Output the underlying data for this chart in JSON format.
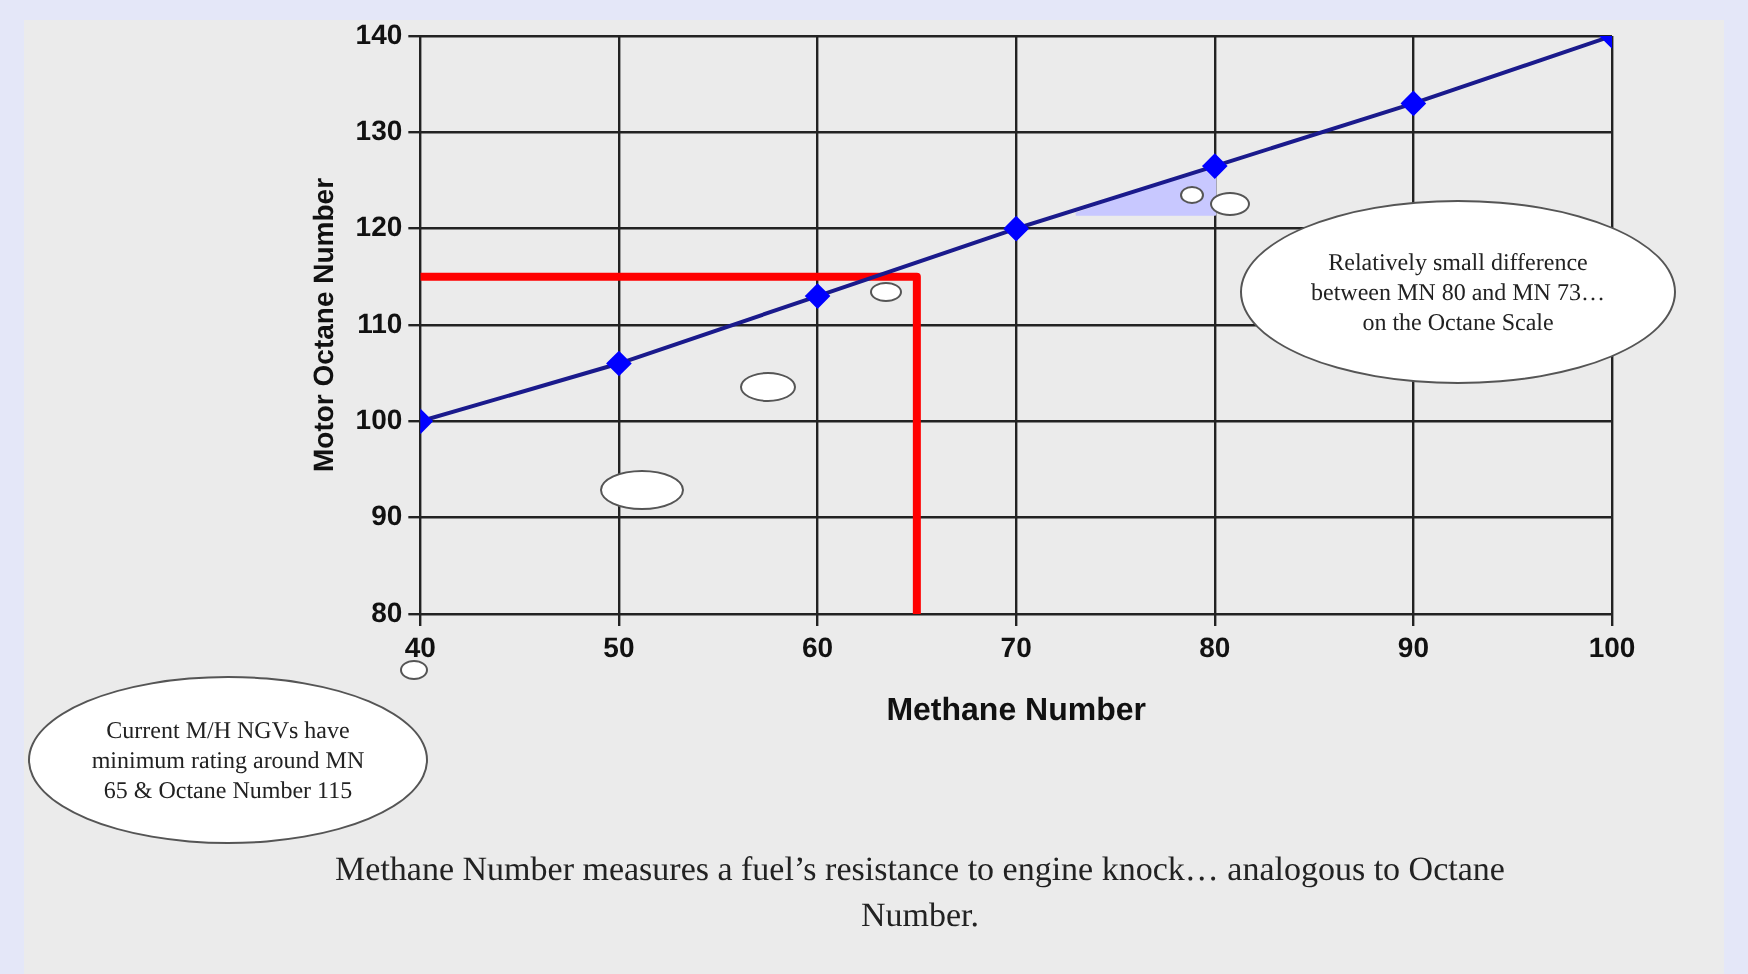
{
  "chart_data": {
    "type": "line",
    "xlabel": "Methane Number",
    "ylabel": "Motor Octane Number",
    "x": [
      40,
      50,
      60,
      70,
      80,
      90,
      100
    ],
    "series": [
      {
        "color": "#1a1a8c",
        "values": [
          100,
          106,
          113,
          120,
          126.5,
          133,
          140
        ],
        "marker": "diamond"
      },
      {
        "color": "#ff0000",
        "x": [
          40,
          65,
          65
        ],
        "values": [
          115,
          115,
          80
        ],
        "marker": "none"
      },
      {
        "type": "area",
        "color": "#c8c8ff",
        "x": [
          73,
          80,
          80,
          73
        ],
        "values": [
          121.5,
          126.5,
          121.5,
          121.5
        ],
        "marker": "none"
      }
    ],
    "xlim": [
      40,
      100
    ],
    "xticks": [
      40,
      50,
      60,
      70,
      80,
      90,
      100
    ],
    "ylim": [
      80,
      140
    ],
    "yticks": [
      80,
      90,
      100,
      110,
      120,
      130,
      140
    ],
    "grid": true,
    "legend": false,
    "line_style": "solid",
    "annotations": [
      "Current M/H NGVs have minimum rating around MN 65 & Octane Number 115",
      "Relatively small difference between MN 80 and MN 73…on the Octane Scale",
      "Methane Number measures a fuel’s resistance to engine knock… analogous to Octane Number."
    ]
  }
}
